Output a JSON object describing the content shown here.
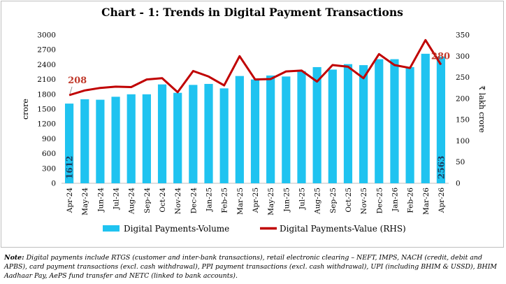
{
  "chart_data": {
    "type": "bar+line",
    "title": "Chart - 1: Trends in Digital Payment Transactions",
    "ylabel_left": "crore",
    "ylabel_right": "₹ lakh crore",
    "ylim_left": [
      0,
      3000
    ],
    "ylim_right": [
      0,
      350
    ],
    "yticks_left": [
      "0",
      "300",
      "600",
      "900",
      "1200",
      "1500",
      "1800",
      "2100",
      "2400",
      "2700",
      "3000"
    ],
    "yticks_right": [
      "0",
      "50",
      "100",
      "150",
      "200",
      "250",
      "300",
      "350"
    ],
    "categories": [
      "Apr-24",
      "May-24",
      "Jun-24",
      "Jul-24",
      "Aug-24",
      "Sep-24",
      "Oct-24",
      "Nov-24",
      "Dec-24",
      "Jan-25",
      "Feb-25",
      "Mar-25",
      "Apr-25",
      "May-25",
      "Jun-25",
      "Jul-25",
      "Aug-25",
      "Sep-25",
      "Oct-25",
      "Nov-25",
      "Dec-25",
      "Jan-26",
      "Feb-26",
      "Mar-26",
      "Apr-26"
    ],
    "series": [
      {
        "name": "Digital Payments-Volume",
        "type": "bar",
        "axis": "left",
        "color": "#1fc3f0",
        "values": [
          1612,
          1700,
          1690,
          1750,
          1800,
          1800,
          2000,
          1830,
          1990,
          2010,
          1920,
          2170,
          2100,
          2180,
          2160,
          2270,
          2350,
          2300,
          2410,
          2390,
          2510,
          2510,
          2350,
          2620,
          2563
        ]
      },
      {
        "name": "Digital Payments-Value (RHS)",
        "type": "line",
        "axis": "right",
        "color": "#c00000",
        "values": [
          208,
          219,
          225,
          228,
          227,
          245,
          248,
          215,
          265,
          252,
          231,
          300,
          245,
          246,
          264,
          266,
          240,
          279,
          275,
          248,
          305,
          279,
          272,
          338,
          280
        ]
      }
    ],
    "data_labels": [
      {
        "series": 1,
        "index": 0,
        "text": "208"
      },
      {
        "series": 1,
        "index": 24,
        "text": "280"
      },
      {
        "series": 0,
        "index": 0,
        "text": "1612"
      },
      {
        "series": 0,
        "index": 24,
        "text": "2563"
      }
    ],
    "legend": "bottom"
  },
  "note": {
    "label": "Note:",
    "text": "Digital payments include RTGS (customer and inter-bank transactions), retail electronic clearing – NEFT, IMPS, NACH (credit, debit and APBS), card payment transactions (excl. cash withdrawal), PPI payment transactions (excl. cash withdrawal), UPI (including BHIM & USSD), BHIM Aadhaar Pay, AePS fund transfer and NETC (linked to bank accounts)."
  }
}
